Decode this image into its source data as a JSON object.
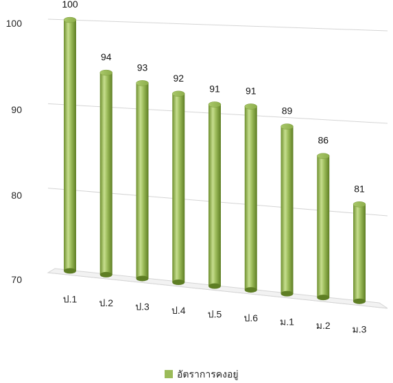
{
  "chart_data": {
    "type": "bar",
    "categories": [
      "ป.1",
      "ป.2",
      "ป.3",
      "ป.4",
      "ป.5",
      "ป.6",
      "ม.1",
      "ม.2",
      "ม.3"
    ],
    "series": [
      {
        "name": "อัตราการคงอยู่",
        "values": [
          100,
          94,
          93,
          92,
          91,
          91,
          89,
          86,
          81
        ]
      }
    ],
    "ylim": [
      70,
      100
    ],
    "yticks": [
      70,
      80,
      90,
      100
    ],
    "grid": true,
    "legend": "bottom",
    "style": "3d-cylinder",
    "colors": {
      "bar": "#9BBB59",
      "bar_dark": "#6E8F2E",
      "bar_light": "#C6DE8E",
      "grid": "#D4D4D4"
    }
  }
}
